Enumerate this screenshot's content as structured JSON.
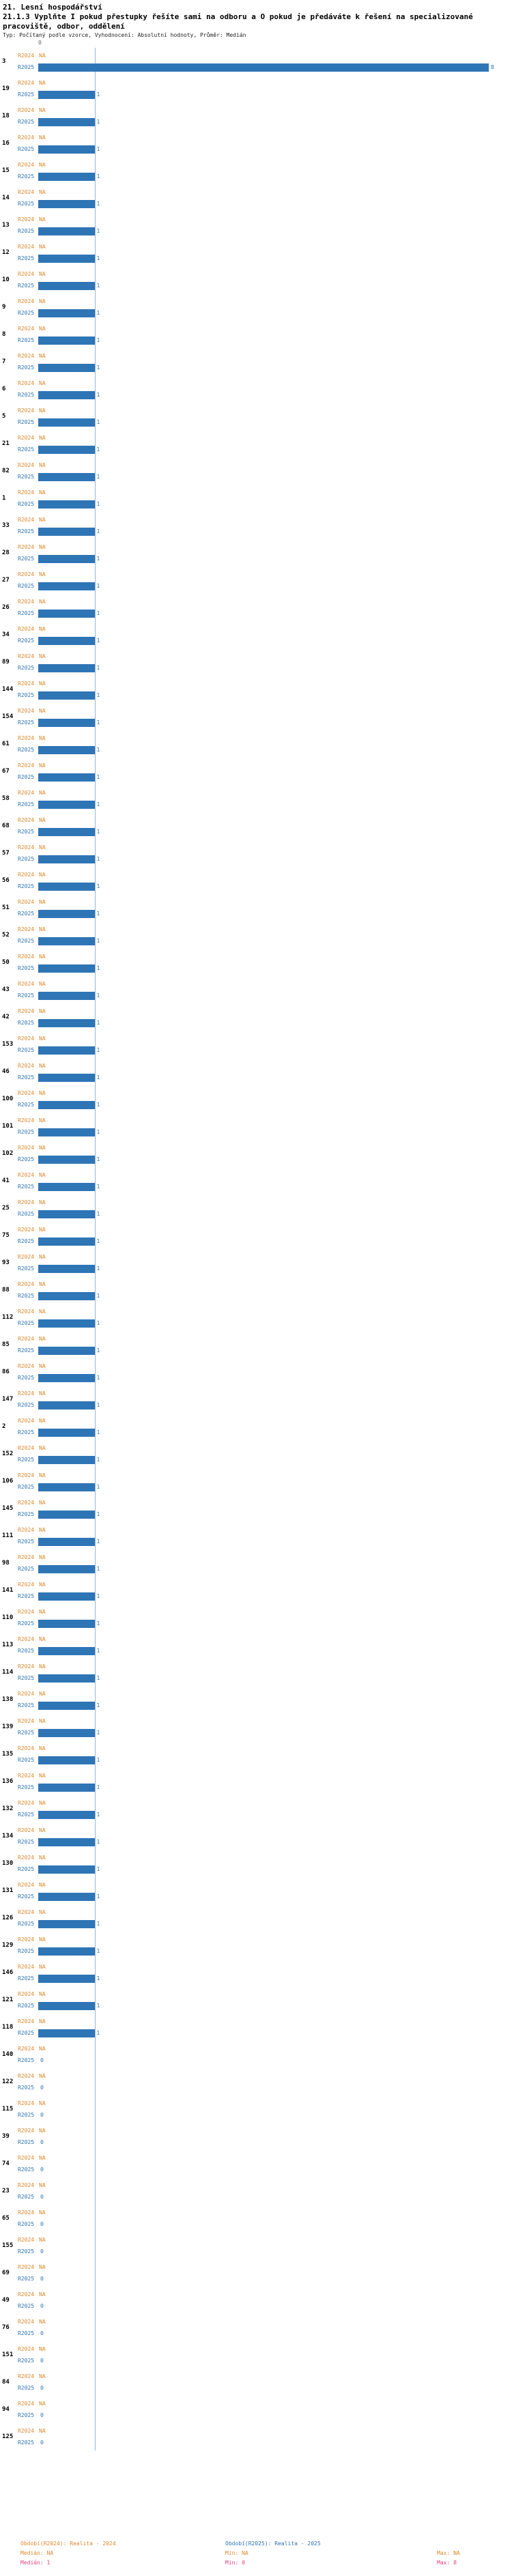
{
  "title": {
    "line1": "21. Lesní hospodářství",
    "line2": "21.1.3 Vyplňte I pokud přestupky řešíte sami na odboru a O pokud je předáváte k řešení na specializované pracoviště, odbor, oddělení",
    "line3": "Typ: Počítaný podle vzorce, Vyhodnocení: Absolutní hodnoty, Průměr: Medián"
  },
  "axis": {
    "tick_labels": [
      "0"
    ]
  },
  "na_label": "NA",
  "colors": {
    "bar": "#2e75b6",
    "orange": "#e08a2e",
    "blue": "#2e75b6",
    "pink": "#e0457b",
    "median_line": "#9ab7d9"
  },
  "chart_data": {
    "type": "bar",
    "orientation": "horizontal",
    "title": "21.1.3 Vyplňte I pokud přestupky řešíte sami na odboru a O pokud je předáváte k řešení na specializované pracoviště, odbor, oddělení",
    "xlabel": "",
    "ylabel": "",
    "xlim": [
      0,
      8
    ],
    "median_value": 1,
    "grid": false,
    "categories": [
      "3",
      "19",
      "18",
      "16",
      "15",
      "14",
      "13",
      "12",
      "10",
      "9",
      "8",
      "7",
      "6",
      "5",
      "21",
      "82",
      "1",
      "33",
      "28",
      "27",
      "26",
      "34",
      "89",
      "144",
      "154",
      "61",
      "67",
      "58",
      "68",
      "57",
      "56",
      "51",
      "52",
      "50",
      "43",
      "42",
      "153",
      "46",
      "100",
      "101",
      "102",
      "41",
      "25",
      "75",
      "93",
      "88",
      "112",
      "85",
      "86",
      "147",
      "2",
      "152",
      "106",
      "145",
      "111",
      "98",
      "141",
      "110",
      "113",
      "114",
      "138",
      "139",
      "135",
      "136",
      "132",
      "134",
      "130",
      "131",
      "126",
      "129",
      "146",
      "121",
      "118",
      "140",
      "122",
      "115",
      "39",
      "74",
      "23",
      "65",
      "155",
      "69",
      "49",
      "76",
      "151",
      "84",
      "94",
      "125"
    ],
    "series": [
      {
        "name": "R2024",
        "uniform_value": "NA"
      },
      {
        "name": "R2025",
        "values": [
          8,
          1,
          1,
          1,
          1,
          1,
          1,
          1,
          1,
          1,
          1,
          1,
          1,
          1,
          1,
          1,
          1,
          1,
          1,
          1,
          1,
          1,
          1,
          1,
          1,
          1,
          1,
          1,
          1,
          1,
          1,
          1,
          1,
          1,
          1,
          1,
          1,
          1,
          1,
          1,
          1,
          1,
          1,
          1,
          1,
          1,
          1,
          1,
          1,
          1,
          1,
          1,
          1,
          1,
          1,
          1,
          1,
          1,
          1,
          1,
          1,
          1,
          1,
          1,
          1,
          1,
          1,
          1,
          1,
          1,
          1,
          1,
          1,
          0,
          0,
          0,
          0,
          0,
          0,
          0,
          0,
          0,
          0,
          0,
          0,
          0,
          0,
          0
        ]
      }
    ]
  },
  "legend": {
    "period_r2024": "Období(R2024): Realita - 2024",
    "period_r2025": "Období(R2025): Realita - 2025",
    "median_r2024": "Medián: NA",
    "min_r2024": "Min: NA",
    "max_r2024": "Max: NA",
    "median_r2025": "Medián: 1",
    "min_r2025": "Min: 0",
    "max_r2025": "Max: 8"
  }
}
